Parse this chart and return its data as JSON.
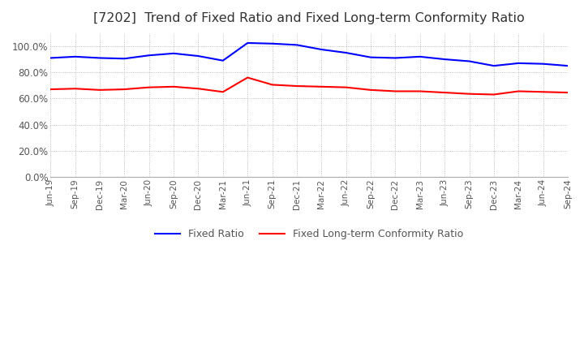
{
  "title": "[7202]  Trend of Fixed Ratio and Fixed Long-term Conformity Ratio",
  "title_fontsize": 11.5,
  "x_labels": [
    "Jun-19",
    "Sep-19",
    "Dec-19",
    "Mar-20",
    "Jun-20",
    "Sep-20",
    "Dec-20",
    "Mar-21",
    "Jun-21",
    "Sep-21",
    "Dec-21",
    "Mar-22",
    "Jun-22",
    "Sep-22",
    "Dec-22",
    "Mar-23",
    "Jun-23",
    "Sep-23",
    "Dec-23",
    "Mar-24",
    "Jun-24",
    "Sep-24"
  ],
  "fixed_ratio": [
    91.0,
    92.0,
    91.0,
    90.5,
    93.0,
    94.5,
    92.5,
    89.0,
    102.5,
    102.0,
    101.0,
    97.5,
    95.0,
    91.5,
    91.0,
    92.0,
    90.0,
    88.5,
    85.0,
    87.0,
    86.5,
    85.0
  ],
  "fixed_lt_ratio": [
    67.0,
    67.5,
    66.5,
    67.0,
    68.5,
    69.0,
    67.5,
    65.0,
    76.0,
    70.5,
    69.5,
    69.0,
    68.5,
    66.5,
    65.5,
    65.5,
    64.5,
    63.5,
    63.0,
    65.5,
    65.0,
    64.5
  ],
  "fixed_ratio_color": "#0000FF",
  "fixed_lt_ratio_color": "#FF0000",
  "ylim": [
    0,
    110
  ],
  "yticks": [
    0,
    20,
    40,
    60,
    80,
    100
  ],
  "background_color": "#ffffff",
  "grid_color": "#aaaaaa",
  "legend_labels": [
    "Fixed Ratio",
    "Fixed Long-term Conformity Ratio"
  ]
}
